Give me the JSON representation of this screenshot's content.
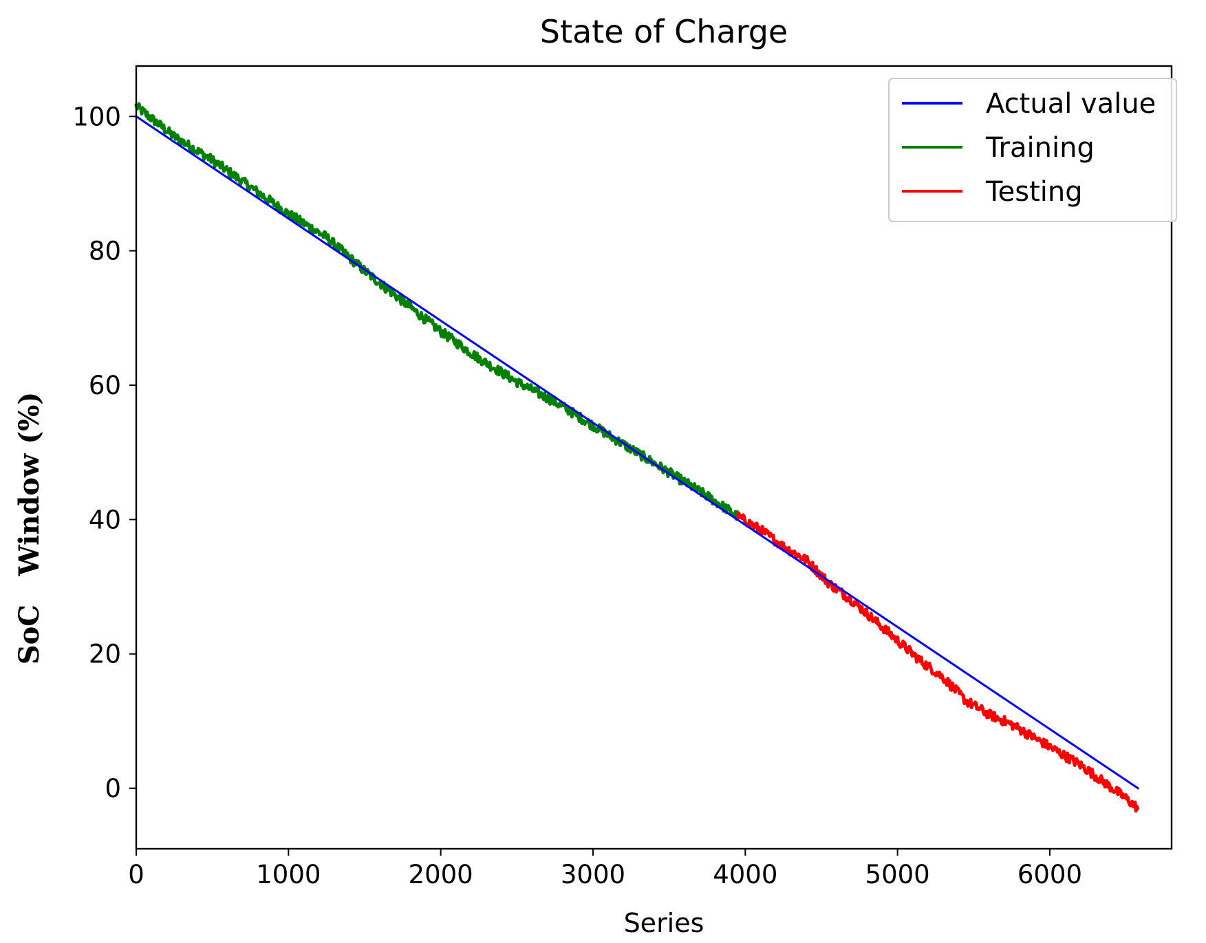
{
  "chart_data": {
    "type": "line",
    "title": "State of Charge",
    "xlabel": "Series",
    "ylabel": "SoC   Window (%)",
    "xlim": [
      0,
      6800
    ],
    "ylim": [
      -9,
      107.5
    ],
    "xticks": [
      0,
      1000,
      2000,
      3000,
      4000,
      5000,
      6000
    ],
    "yticks": [
      0,
      20,
      40,
      60,
      80,
      100
    ],
    "xtick_labels": [
      "0",
      "1000",
      "2000",
      "3000",
      "4000",
      "5000",
      "6000"
    ],
    "ytick_labels": [
      "0",
      "20",
      "40",
      "60",
      "80",
      "100"
    ],
    "grid": false,
    "legend_position": "top-right",
    "series": [
      {
        "name": "Actual value",
        "color": "#0000ff",
        "x": [
          0,
          6580
        ],
        "y": [
          100,
          0
        ]
      },
      {
        "name": "Training",
        "color": "#008000",
        "x": [
          0,
          250,
          500,
          750,
          1000,
          1250,
          1500,
          1750,
          2000,
          2250,
          2500,
          2750,
          3000,
          3250,
          3500,
          3750,
          3950
        ],
        "y": [
          101.5,
          97,
          93.5,
          89.5,
          85.5,
          82,
          77,
          72.5,
          68,
          64,
          60.5,
          57.5,
          54,
          50.5,
          47,
          43.5,
          40.5
        ]
      },
      {
        "name": "Testing",
        "color": "#ff0000",
        "x": [
          3950,
          4100,
          4250,
          4400,
          4550,
          4700,
          4850,
          5000,
          5150,
          5300,
          5450,
          5600,
          5750,
          5900,
          6050,
          6200,
          6350,
          6500,
          6580
        ],
        "y": [
          40.5,
          38.5,
          36,
          34,
          30.5,
          28,
          25,
          22,
          19,
          16.5,
          13,
          11,
          9.5,
          7.5,
          5.5,
          3.5,
          1,
          -1.5,
          -3
        ]
      }
    ]
  }
}
